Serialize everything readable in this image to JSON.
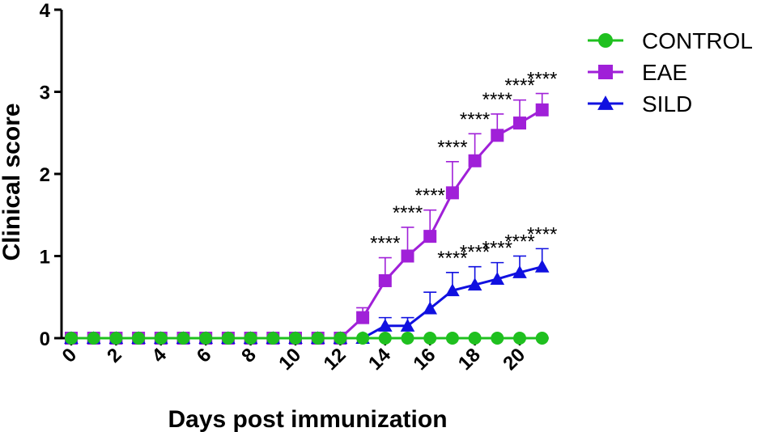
{
  "chart_data": {
    "type": "line",
    "xlabel": "Days post immunization",
    "ylabel": "Clinical score",
    "xlim": [
      0,
      21
    ],
    "ylim": [
      0,
      4
    ],
    "x_ticks": [
      0,
      2,
      4,
      6,
      8,
      10,
      12,
      14,
      16,
      18,
      20
    ],
    "y_ticks": [
      0,
      1,
      2,
      3,
      4
    ],
    "x": [
      0,
      1,
      2,
      3,
      4,
      5,
      6,
      7,
      8,
      9,
      10,
      11,
      12,
      13,
      14,
      15,
      16,
      17,
      18,
      19,
      20,
      21
    ],
    "legend_position": "top-right",
    "series": [
      {
        "name": "CONTROL",
        "color": "#1fc01f",
        "marker": "circle",
        "values": [
          0,
          0,
          0,
          0,
          0,
          0,
          0,
          0,
          0,
          0,
          0,
          0,
          0,
          0,
          0,
          0,
          0,
          0,
          0,
          0,
          0,
          0
        ],
        "error": []
      },
      {
        "name": "EAE",
        "color": "#a020d8",
        "marker": "square",
        "values": [
          0,
          0,
          0,
          0,
          0,
          0,
          0,
          0,
          0,
          0,
          0,
          0,
          0,
          0.25,
          0.7,
          1.0,
          1.24,
          1.77,
          2.16,
          2.47,
          2.62,
          2.78
        ],
        "error": [
          0,
          0,
          0,
          0,
          0,
          0,
          0,
          0,
          0,
          0,
          0,
          0,
          0,
          0.12,
          0.28,
          0.35,
          0.32,
          0.38,
          0.33,
          0.26,
          0.28,
          0.2
        ]
      },
      {
        "name": "SILD",
        "color": "#1010e0",
        "marker": "triangle",
        "values": [
          0,
          0,
          0,
          0,
          0,
          0,
          0,
          0,
          0,
          0,
          0,
          0,
          0,
          0,
          0.15,
          0.15,
          0.36,
          0.58,
          0.65,
          0.72,
          0.8,
          0.87
        ],
        "error": [
          0,
          0,
          0,
          0,
          0,
          0,
          0,
          0,
          0,
          0,
          0,
          0,
          0,
          0,
          0.1,
          0.1,
          0.2,
          0.22,
          0.22,
          0.2,
          0.2,
          0.22
        ]
      }
    ],
    "annotations": [
      {
        "series": "EAE",
        "x": 14,
        "text": "****"
      },
      {
        "series": "EAE",
        "x": 15,
        "text": "****"
      },
      {
        "series": "EAE",
        "x": 16,
        "text": "****"
      },
      {
        "series": "EAE",
        "x": 17,
        "text": "****"
      },
      {
        "series": "EAE",
        "x": 18,
        "text": "****"
      },
      {
        "series": "EAE",
        "x": 19,
        "text": "****"
      },
      {
        "series": "EAE",
        "x": 20,
        "text": "****"
      },
      {
        "series": "EAE",
        "x": 21,
        "text": "****"
      },
      {
        "series": "SILD",
        "x": 17,
        "text": "****"
      },
      {
        "series": "SILD",
        "x": 18,
        "text": "****"
      },
      {
        "series": "SILD",
        "x": 19,
        "text": "****"
      },
      {
        "series": "SILD",
        "x": 20,
        "text": "****"
      },
      {
        "series": "SILD",
        "x": 21,
        "text": "****"
      }
    ]
  }
}
